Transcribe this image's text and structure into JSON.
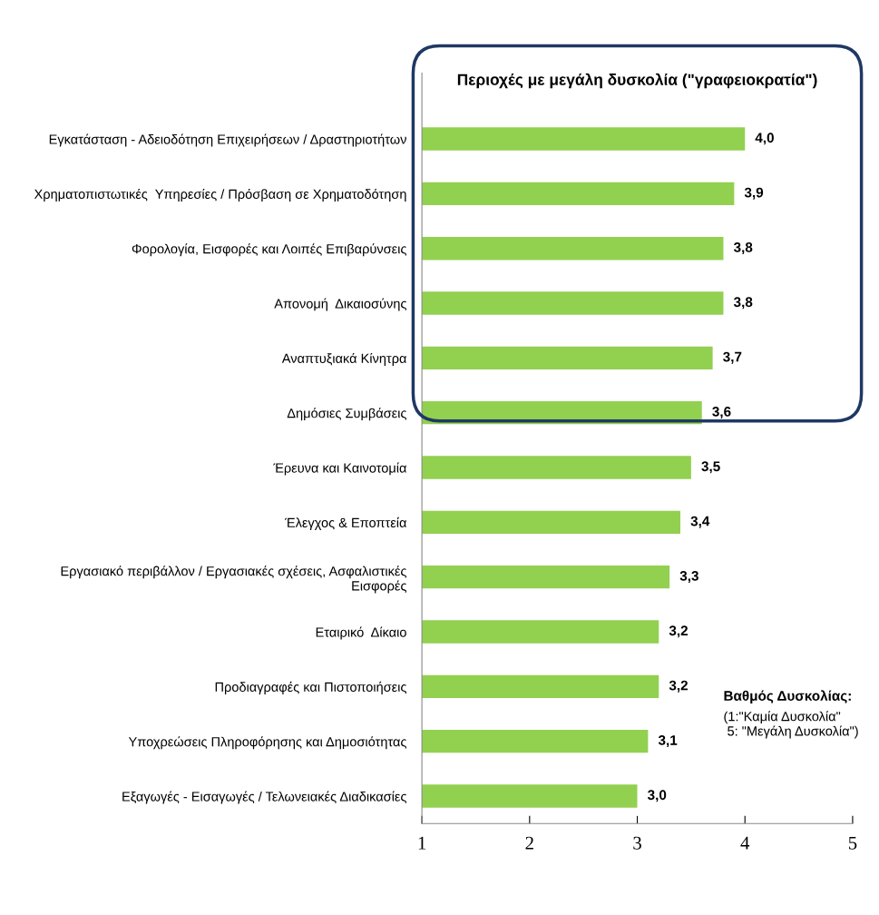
{
  "chart_data": {
    "type": "bar",
    "orientation": "horizontal",
    "categories": [
      "Εγκατάσταση - Αδειοδότηση Επιχειρήσεων / Δραστηριοτήτων",
      "Χρηματοπιστωτικές  Υπηρεσίες / Πρόσβαση σε Χρηματοδότηση",
      "Φορολογία, Εισφορές και Λοιπές Επιβαρύνσεις",
      "Απονομή  Δικαιοσύνης",
      "Αναπτυξιακά Κίνητρα",
      "Δημόσιες Συμβάσεις",
      "Έρευνα και Καινοτομία",
      "Έλεγχος & Εποπτεία",
      "Εργασιακό περιβάλλον / Εργασιακές σχέσεις, Ασφαλιστικές\nΕισφορές",
      "Εταιρικό  Δίκαιο",
      "Προδιαγραφές και Πιστοποιήσεις",
      "Υποχρεώσεις Πληροφόρησης και Δημοσιότητας",
      "Εξαγωγές - Εισαγωγές / Τελωνειακές Διαδικασίες"
    ],
    "values": [
      4.0,
      3.9,
      3.8,
      3.8,
      3.7,
      3.6,
      3.5,
      3.4,
      3.3,
      3.2,
      3.2,
      3.1,
      3.0
    ],
    "value_labels": [
      "4,0",
      "3,9",
      "3,8",
      "3,8",
      "3,7",
      "3,6",
      "3,5",
      "3,4",
      "3,3",
      "3,2",
      "3,2",
      "3,1",
      "3,0"
    ],
    "color": "#92d050",
    "xlim": [
      1,
      5
    ],
    "xticks": [
      1,
      2,
      3,
      4,
      5
    ],
    "grid": false,
    "legend": false,
    "annotations": [
      "Περιοχές με μεγάλη δυσκολία (\"γραφειοκρατία\")",
      "Βαθμός Δυσκολίας:",
      "(1:\"Καμία Δυσκολία\"\n 5: \"Μεγάλη Δυσκολία\")"
    ]
  }
}
